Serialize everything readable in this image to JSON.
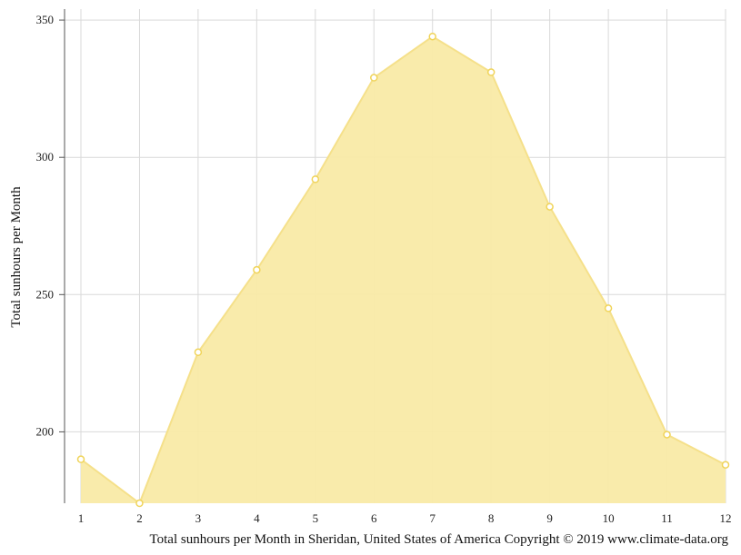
{
  "chart_data": {
    "type": "area",
    "x": [
      1,
      2,
      3,
      4,
      5,
      6,
      7,
      8,
      9,
      10,
      11,
      12
    ],
    "series": [
      {
        "values": [
          190,
          174,
          229,
          259,
          292,
          329,
          344,
          331,
          282,
          245,
          199,
          188
        ]
      }
    ],
    "ylabel": "Total sunhours per Month",
    "xlabel": "",
    "caption": "Total sunhours per Month in Sheridan, United States of America Copyright © 2019 www.climate-data.org",
    "xlim": [
      1,
      12
    ],
    "ylim": [
      174,
      354
    ],
    "yticks": [
      200,
      250,
      300,
      350
    ],
    "xticks": [
      1,
      2,
      3,
      4,
      5,
      6,
      7,
      8,
      9,
      10,
      11,
      12
    ],
    "grid": true,
    "colors": {
      "fill": "#f9eaa6",
      "line": "#f5e08a",
      "marker": "#f0d45a",
      "grid": "#d9d9d9",
      "axis": "#555555"
    }
  }
}
